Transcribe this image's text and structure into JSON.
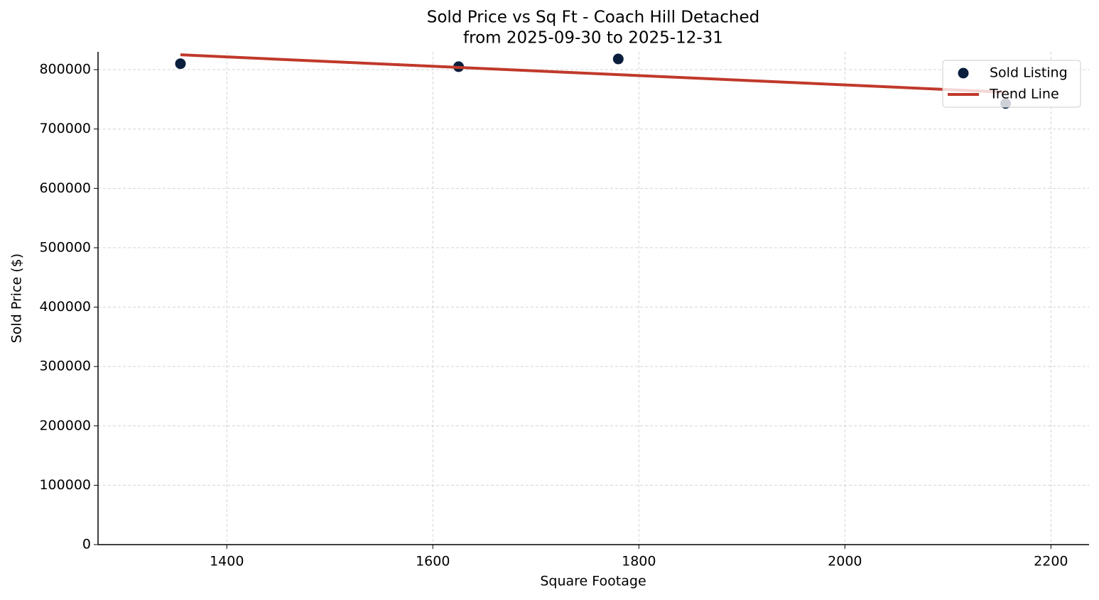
{
  "chart_data": {
    "type": "scatter",
    "title": "Sold Price vs Sq Ft - Coach Hill Detached",
    "subtitle": "from 2025-09-30 to 2025-12-31",
    "x_label": "Square Footage",
    "y_label": "Sold Price ($)",
    "series": [
      {
        "name": "Sold Listing",
        "type": "scatter",
        "color": "#0b1f3d",
        "x": [
          1355,
          1625,
          1780,
          2156
        ],
        "values": [
          810000,
          805000,
          818000,
          743000
        ]
      },
      {
        "name": "Trend Line",
        "type": "line",
        "color": "#c0392b",
        "x": [
          1355,
          2156
        ],
        "values": [
          825000,
          762000
        ]
      }
    ],
    "xlim": [
      1275,
      2237
    ],
    "ylim": [
      0,
      830000
    ],
    "xticks": [
      1400,
      1600,
      1800,
      2000,
      2200
    ],
    "yticks": [
      0,
      100000,
      200000,
      300000,
      400000,
      500000,
      600000,
      700000,
      800000
    ],
    "grid": true,
    "legend": "upper right"
  }
}
